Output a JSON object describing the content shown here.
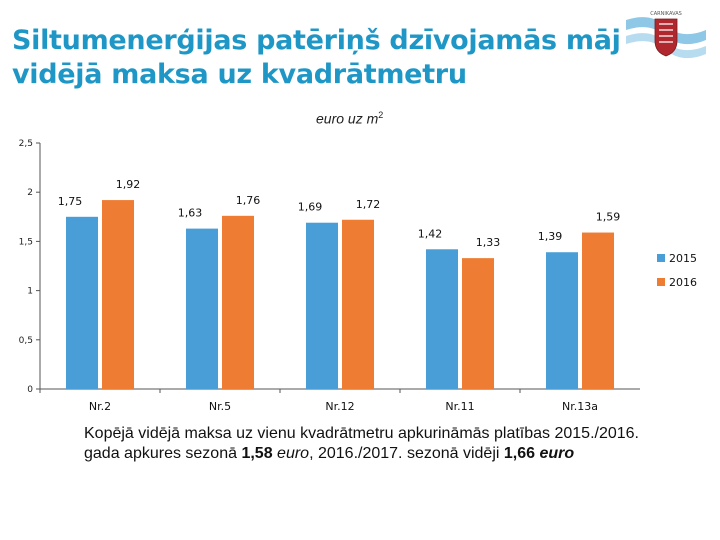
{
  "title": {
    "line1": "Siltumenerģijas patēriņš dzīvojamās mājās,",
    "line2": "vidējā maksa uz kvadrātmetru"
  },
  "unit_label": {
    "text": "euro uz m",
    "sup": "2"
  },
  "logo": {
    "text": "CARNIKAVAS",
    "icon": "coat-of-arms-icon"
  },
  "colors": {
    "s2015": "#4a9ed8",
    "s2016": "#ee7d33",
    "title": "#1f97c6"
  },
  "chart_data": {
    "type": "bar",
    "title": "Siltumenerģijas patēriņš dzīvojamās mājās, vidējā maksa uz kvadrātmetru",
    "ylabel": "euro uz m2",
    "xlabel": "",
    "categories": [
      "Nr.2",
      "Nr.5",
      "Nr.12",
      "Nr.11",
      "Nr.13a"
    ],
    "series": [
      {
        "name": "2015",
        "values": [
          1.75,
          1.63,
          1.69,
          1.42,
          1.39
        ],
        "labels": [
          "1,75",
          "1,63",
          "1,69",
          "1,42",
          "1,39"
        ]
      },
      {
        "name": "2016",
        "values": [
          1.92,
          1.76,
          1.72,
          1.33,
          1.59
        ],
        "labels": [
          "1,92",
          "1,76",
          "1,72",
          "1,33",
          "1,59"
        ]
      }
    ],
    "ylim": [
      0,
      2.5
    ],
    "yticks": [
      0,
      0.5,
      1,
      1.5,
      2,
      2.5
    ],
    "ytick_labels": [
      "0",
      "0,5",
      "1",
      "1,5",
      "2",
      "2,5"
    ],
    "grid": false,
    "legend_position": "right"
  },
  "footer": {
    "part1": "Kopējā vidējā maksa uz vienu kvadrātmetru apkurināmās platības 2015./2016. gada apkures sezonā ",
    "value1": "1,58",
    "euro1": "euro",
    "part2": ", 2016./2017. sezonā vidēji ",
    "value2": "1,66",
    "euro2": "euro"
  }
}
